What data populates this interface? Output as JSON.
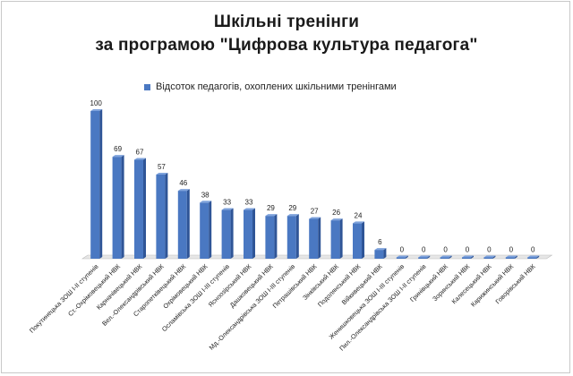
{
  "chart_data": {
    "type": "bar",
    "title": "Шкільні тренінги",
    "subtitle": "за програмою \"Цифрова культура педагога\"",
    "legend": [
      "Відсоток педагогів, охоплених шкільними тренінгами"
    ],
    "legend_position": "top",
    "series": [
      {
        "name": "Відсоток педагогів, охоплених шкільними тренінгами",
        "color": "#4a78c2",
        "values": [
          100,
          69,
          67,
          57,
          46,
          38,
          33,
          33,
          29,
          29,
          27,
          26,
          24,
          6,
          0,
          0,
          0,
          0,
          0,
          0,
          0
        ]
      }
    ],
    "categories": [
      "Покутинецька ЗОШ I-II ступенів",
      "Ст.-Охрімовецький НВК",
      "Карначівецький НВК",
      "Вел.-Олександрівський НВК",
      "Старопетківецький НВК",
      "Охрімовецький НВК",
      "Осламівська ЗОШ I-III ступенів",
      "Ясноозірський НВК",
      "Дашковецький НВК",
      "Мд.-Олександрівська ЗОШ I-III ступенів",
      "Петрашівський НВК",
      "Зінківський НВК",
      "Подолянський НВК",
      "Війкивецький НВК",
      "Женишковецька ЗОШ I-III ступенів",
      "Пил.-Олександрівська ЗОШ I-II ступенів",
      "Гринівцький НВК",
      "Зоринський НВК",
      "Калесецький НВК",
      "Карижинський НВК",
      "Говорівський НВК"
    ],
    "ylim": [
      0,
      100
    ],
    "grid": false,
    "data_labels": true
  }
}
